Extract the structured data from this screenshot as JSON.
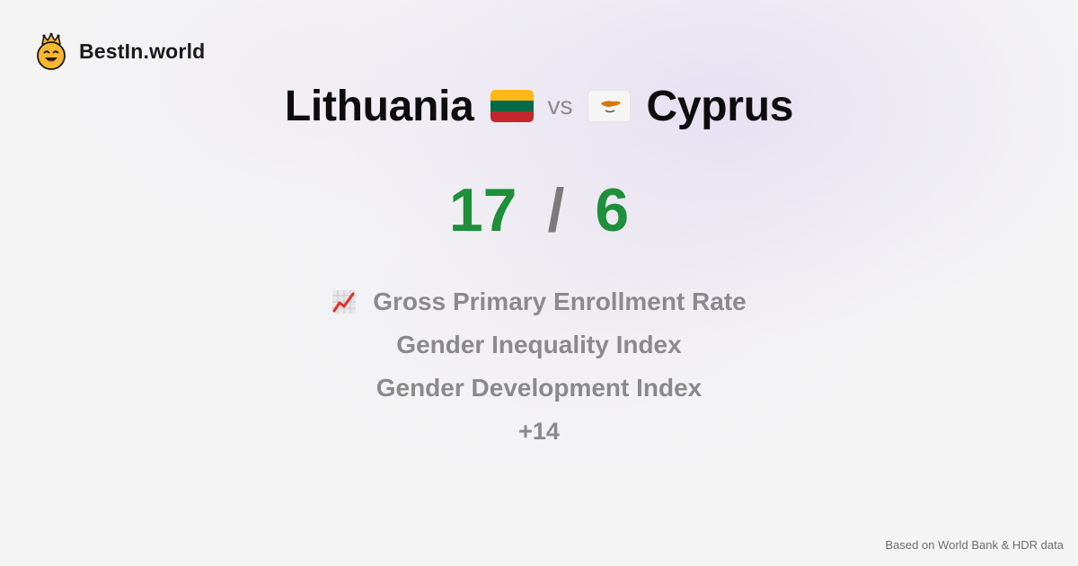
{
  "brand": {
    "name": "BestIn.world",
    "logo_icon": "smiling-crown-face-icon"
  },
  "comparison": {
    "left": {
      "name": "Lithuania",
      "flag_icon": "lithuania-flag-icon",
      "flag_colors": [
        "#FDB913",
        "#006A44",
        "#C1272D"
      ]
    },
    "separator": "vs",
    "right": {
      "name": "Cyprus",
      "flag_icon": "cyprus-flag-icon",
      "flag_colors": [
        "#FFFFFF",
        "#D57800",
        "#4E5B31"
      ]
    }
  },
  "score": {
    "left": "17",
    "separator": "/",
    "right": "6",
    "color": "#1e8f3a"
  },
  "metrics": {
    "icon": "chart-increasing-icon",
    "items": [
      "Gross Primary Enrollment Rate",
      "Gender Inequality Index",
      "Gender Development Index"
    ],
    "more": "+14"
  },
  "footer": {
    "source_note": "Based on World Bank & HDR data"
  }
}
